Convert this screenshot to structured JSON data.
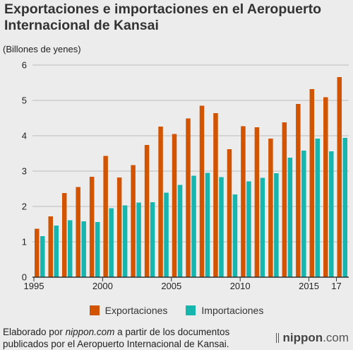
{
  "title_line1": "Exportaciones e importaciones en el Aeropuerto",
  "title_line2": "Internacional de Kansai",
  "unit_label": "(Billones de yenes)",
  "source": {
    "prefix": "Elaborado por ",
    "site": "nippon.com",
    "suffix": " a partir de los documentos publicados por el Aeropuerto Internacional de Kansai."
  },
  "brand": {
    "name": "nippon",
    "tld": ".com"
  },
  "colors": {
    "exports": "#d35400",
    "imports": "#16b5ae",
    "grid": "#bdbdbd",
    "axis": "#333333"
  },
  "chart_data": {
    "type": "bar",
    "categories": [
      "1995",
      "1996",
      "1997",
      "1998",
      "1999",
      "2000",
      "2001",
      "2002",
      "2003",
      "2004",
      "2005",
      "2006",
      "2007",
      "2008",
      "2009",
      "2010",
      "2011",
      "2012",
      "2013",
      "2014",
      "2015",
      "2016",
      "2017"
    ],
    "x_tick_labels": [
      {
        "index": 0,
        "label": "1995"
      },
      {
        "index": 5,
        "label": "2000"
      },
      {
        "index": 10,
        "label": "2005"
      },
      {
        "index": 15,
        "label": "2010"
      },
      {
        "index": 20,
        "label": "2015"
      },
      {
        "index": 22,
        "label": "17"
      }
    ],
    "series": [
      {
        "name": "Exportaciones",
        "values": [
          1.37,
          1.72,
          2.38,
          2.55,
          2.84,
          3.43,
          2.82,
          3.17,
          3.74,
          4.26,
          4.05,
          4.49,
          4.85,
          4.64,
          3.62,
          4.27,
          4.24,
          3.92,
          4.38,
          4.9,
          5.32,
          5.09,
          5.66
        ]
      },
      {
        "name": "Importaciones",
        "values": [
          1.16,
          1.46,
          1.61,
          1.58,
          1.56,
          1.95,
          2.03,
          2.11,
          2.12,
          2.39,
          2.61,
          2.87,
          2.95,
          2.83,
          2.34,
          2.71,
          2.81,
          2.94,
          3.38,
          3.58,
          3.92,
          3.56,
          3.94
        ]
      }
    ],
    "ylim": [
      0,
      6
    ],
    "yticks": [
      0,
      1,
      2,
      3,
      4,
      5,
      6
    ],
    "grid": true,
    "legend_position": "bottom"
  }
}
